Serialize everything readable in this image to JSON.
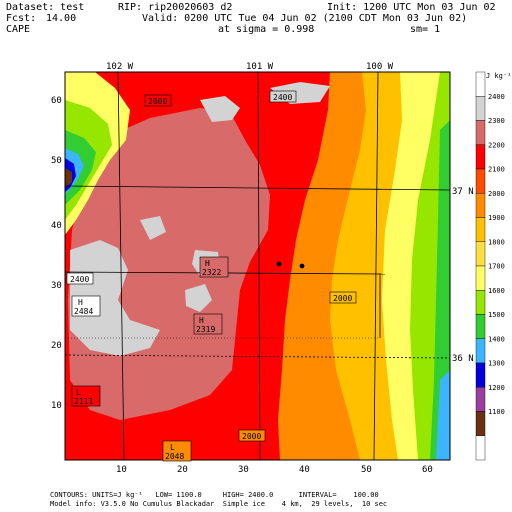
{
  "header": {
    "dataset": "Dataset: test",
    "rip": "RIP: rip20020603 d2",
    "init": "Init: 1200 UTC Mon 03 Jun 02",
    "fcst_label": "Fcst:",
    "fcst_value": "14.00",
    "valid": "Valid: 0200 UTC Tue 04 Jun 02 (2100 CDT Mon 03 Jun 02)",
    "field": "CAPE",
    "sigma": "at sigma = 0.998",
    "sm": "sm= 1"
  },
  "longitude_labels": [
    "102 W",
    "101 W",
    "100 W"
  ],
  "latitude_labels": [
    "37 N",
    "36 N"
  ],
  "x_ticks": [
    "10",
    "20",
    "30",
    "40",
    "50",
    "60"
  ],
  "y_ticks": [
    "10",
    "20",
    "30",
    "40",
    "50",
    "60"
  ],
  "contour_labels": {
    "c2000_top": "2000",
    "c2400_top": "2400",
    "c2400_left": "2400",
    "c2000_right": "2000",
    "c2000_bottom": "2000"
  },
  "extrema": [
    {
      "letter": "H",
      "value": "2322"
    },
    {
      "letter": "H",
      "value": "2484"
    },
    {
      "letter": "H",
      "value": "2319"
    },
    {
      "letter": "L",
      "value": "2111"
    },
    {
      "letter": "L",
      "value": "2048"
    }
  ],
  "colorbar": {
    "unit": "J kg⁻¹",
    "levels": [
      "2400",
      "2300",
      "2200",
      "2100",
      "2000",
      "1900",
      "1800",
      "1700",
      "1600",
      "1500",
      "1400",
      "1300",
      "1200",
      "1100"
    ],
    "colors": [
      "#ffffff",
      "#d3d3d3",
      "#d86a6a",
      "#ff0000",
      "#ff4b00",
      "#ff8c00",
      "#ffc000",
      "#ffe040",
      "#ffff64",
      "#96e600",
      "#32cd32",
      "#3cb4ff",
      "#0000e0",
      "#9a3ea0",
      "#6a3010",
      "#ffffff"
    ]
  },
  "footer": {
    "line1": "CONTOURS: UNITS=J kg⁻¹   LOW= 1100.0     HIGH= 2400.0      INTERVAL=    100.00",
    "line2": "Model info: V3.5.0 No Cumulus Blackadar  Simple ice    4 km,  29 levels,  10 sec"
  }
}
